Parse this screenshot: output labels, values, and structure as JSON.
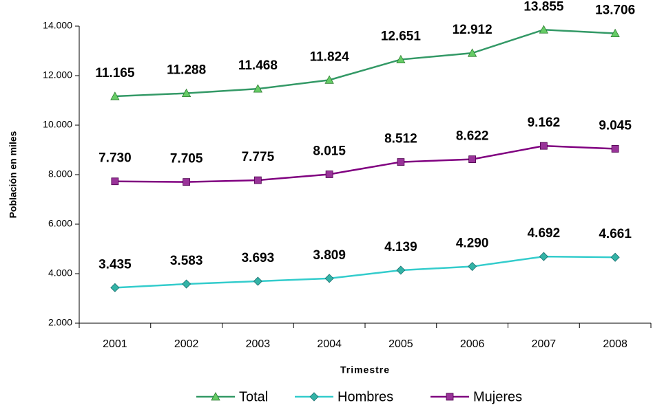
{
  "chart_data": {
    "type": "line",
    "x_label": "Trimestre",
    "y_label": "Población en miles",
    "categories": [
      "2001",
      "2002",
      "2003",
      "2004",
      "2005",
      "2006",
      "2007",
      "2008"
    ],
    "series": [
      {
        "name": "Total",
        "color": "#339966",
        "marker_color": "#66cc66",
        "label_color": "#339900",
        "marker": "triangle",
        "values": [
          11165,
          11288,
          11468,
          11824,
          12651,
          12912,
          13855,
          13706
        ],
        "value_labels": [
          "11.165",
          "11.288",
          "11.468",
          "11.824",
          "12.651",
          "12.912",
          "13.855",
          "13.706"
        ]
      },
      {
        "name": "Hombres",
        "color": "#33cccc",
        "marker_color": "#33b3a6",
        "label_color": "#1a8080",
        "marker": "diamond",
        "values": [
          3435,
          3583,
          3693,
          3809,
          4139,
          4290,
          4692,
          4661
        ],
        "value_labels": [
          "3.435",
          "3.583",
          "3.693",
          "3.809",
          "4.139",
          "4.290",
          "4.692",
          "4.661"
        ]
      },
      {
        "name": "Mujeres",
        "color": "#800080",
        "marker_color": "#993399",
        "label_color": "#800080",
        "marker": "square",
        "values": [
          7730,
          7705,
          7775,
          8015,
          8512,
          8622,
          9162,
          9045
        ],
        "value_labels": [
          "7.730",
          "7.705",
          "7.775",
          "8.015",
          "8.512",
          "8.622",
          "9.162",
          "9.045"
        ]
      }
    ],
    "ylim": [
      2000,
      14000
    ],
    "yticks": [
      {
        "value": 2000,
        "label": "2.000"
      },
      {
        "value": 4000,
        "label": "4.000"
      },
      {
        "value": 6000,
        "label": "6.000"
      },
      {
        "value": 8000,
        "label": "8.000"
      },
      {
        "value": 10000,
        "label": "10.000"
      },
      {
        "value": 12000,
        "label": "12.000"
      },
      {
        "value": 14000,
        "label": "14.000"
      }
    ],
    "legend": "bottom"
  }
}
